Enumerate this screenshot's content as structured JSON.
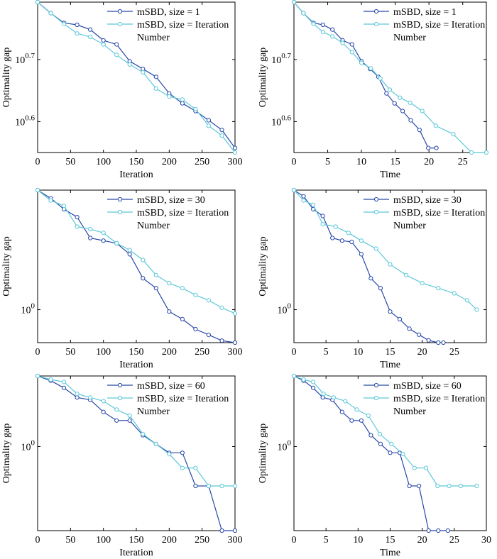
{
  "colors": {
    "series_a": "#2747a8",
    "series_b": "#5cc8d8",
    "axis": "#000000"
  },
  "chart_data": [
    {
      "type": "line",
      "panel": "row1-left",
      "xlabel": "Iteration",
      "ylabel": "Optimality gap",
      "yscale": "log",
      "xlim": [
        0,
        300
      ],
      "ylim": [
        3.55,
        6.2
      ],
      "xticks": [
        0,
        50,
        100,
        150,
        200,
        250,
        300
      ],
      "yticks": [
        {
          "value": 5.0119,
          "base": "10",
          "exp": "0.7"
        },
        {
          "value": 3.9811,
          "base": "10",
          "exp": "0.6"
        }
      ],
      "legend_position": "top-right",
      "series": [
        {
          "name": "mSBD, size = 1",
          "color": "#2747a8",
          "x": [
            0,
            20,
            40,
            60,
            80,
            100,
            120,
            140,
            160,
            180,
            200,
            220,
            240,
            260,
            280,
            300
          ],
          "y": [
            6.2,
            5.95,
            5.74,
            5.7,
            5.6,
            5.38,
            5.3,
            4.98,
            4.84,
            4.7,
            4.42,
            4.26,
            4.14,
            4.0,
            3.86,
            3.61
          ]
        },
        {
          "name": "mSBD, size = Iteration Number",
          "color": "#5cc8d8",
          "x": [
            0,
            20,
            40,
            60,
            80,
            100,
            120,
            140,
            160,
            180,
            200,
            220,
            240,
            260,
            280,
            300
          ],
          "y": [
            6.2,
            5.95,
            5.72,
            5.52,
            5.45,
            5.3,
            5.1,
            4.92,
            4.78,
            4.5,
            4.37,
            4.32,
            4.17,
            3.92,
            3.78,
            3.55
          ]
        }
      ]
    },
    {
      "type": "line",
      "panel": "row1-right",
      "xlabel": "Time",
      "ylabel": "Optimality gap",
      "yscale": "log",
      "xlim": [
        0,
        28.5
      ],
      "ylim": [
        3.55,
        6.2
      ],
      "xticks": [
        0,
        5,
        10,
        15,
        20,
        25
      ],
      "yticks": [
        {
          "value": 5.0119,
          "base": "10",
          "exp": "0.7"
        },
        {
          "value": 3.9811,
          "base": "10",
          "exp": "0.6"
        }
      ],
      "legend_position": "top-right",
      "series": [
        {
          "name": "mSBD, size = 1",
          "color": "#2747a8",
          "x": [
            0,
            1.4,
            2.9,
            4.3,
            5.7,
            7.2,
            8.6,
            10.0,
            11.3,
            12.5,
            13.7,
            14.9,
            16.1,
            17.3,
            18.6,
            19.9,
            21.1
          ],
          "y": [
            6.2,
            5.95,
            5.74,
            5.7,
            5.6,
            5.38,
            5.3,
            4.98,
            4.84,
            4.7,
            4.42,
            4.26,
            4.14,
            4.0,
            3.86,
            3.61,
            3.61
          ]
        },
        {
          "name": "mSBD, size = Iteration Number",
          "color": "#5cc8d8",
          "x": [
            0,
            1.4,
            2.9,
            4.3,
            5.7,
            7.2,
            8.6,
            10.0,
            11.4,
            12.8,
            14.2,
            15.7,
            17.2,
            19.0,
            21.0,
            23.6,
            26.3,
            28.5
          ],
          "y": [
            6.2,
            5.95,
            5.72,
            5.55,
            5.46,
            5.33,
            5.15,
            4.95,
            4.85,
            4.67,
            4.48,
            4.35,
            4.27,
            4.14,
            3.92,
            3.8,
            3.55,
            3.55
          ]
        }
      ]
    },
    {
      "type": "line",
      "panel": "row2-left",
      "xlabel": "Iteration",
      "ylabel": "Optimality gap",
      "yscale": "log",
      "xlim": [
        0,
        300
      ],
      "ylim": [
        0.84,
        1.88
      ],
      "xticks": [
        0,
        50,
        100,
        150,
        200,
        250,
        300
      ],
      "yticks": [
        {
          "value": 1.0,
          "base": "10",
          "exp": "0"
        }
      ],
      "legend_position": "top-right",
      "series": [
        {
          "name": "mSBD, size = 30",
          "color": "#2747a8",
          "x": [
            0,
            20,
            40,
            60,
            80,
            100,
            120,
            140,
            160,
            180,
            200,
            220,
            240,
            260,
            280,
            300
          ],
          "y": [
            1.88,
            1.8,
            1.7,
            1.63,
            1.46,
            1.44,
            1.42,
            1.34,
            1.18,
            1.12,
            0.99,
            0.951,
            0.902,
            0.875,
            0.849,
            0.84
          ]
        },
        {
          "name": "mSBD, size = Iteration Number",
          "color": "#5cc8d8",
          "x": [
            0,
            20,
            40,
            60,
            80,
            100,
            120,
            140,
            160,
            180,
            200,
            220,
            240,
            260,
            280,
            300
          ],
          "y": [
            1.88,
            1.78,
            1.73,
            1.55,
            1.53,
            1.5,
            1.42,
            1.37,
            1.3,
            1.2,
            1.15,
            1.12,
            1.08,
            1.05,
            1.01,
            0.98
          ]
        }
      ]
    },
    {
      "type": "line",
      "panel": "row2-right",
      "xlabel": "Time",
      "ylabel": "Optimality gap",
      "yscale": "log",
      "xlim": [
        0,
        30
      ],
      "ylim": [
        0.84,
        1.88
      ],
      "xticks": [
        0,
        5,
        10,
        15,
        20,
        25
      ],
      "yticks": [
        {
          "value": 1.0,
          "base": "10",
          "exp": "0"
        }
      ],
      "legend_position": "top-right",
      "series": [
        {
          "name": "mSBD, size = 30",
          "color": "#2747a8",
          "x": [
            0,
            1.5,
            3.0,
            4.5,
            6.0,
            7.5,
            9.0,
            10.5,
            12.0,
            13.5,
            15.0,
            16.5,
            18.0,
            19.5,
            21.0,
            22.5,
            23.3
          ],
          "y": [
            1.88,
            1.82,
            1.7,
            1.64,
            1.46,
            1.44,
            1.43,
            1.34,
            1.18,
            1.12,
            0.99,
            0.951,
            0.904,
            0.876,
            0.85,
            0.84,
            0.84
          ]
        },
        {
          "name": "mSBD, size = Iteration Number",
          "color": "#5cc8d8",
          "x": [
            0,
            1.5,
            3.0,
            4.5,
            6.5,
            8.5,
            10.5,
            12.8,
            15.0,
            17.5,
            20.0,
            22.5,
            25.0,
            27.0,
            28.5
          ],
          "y": [
            1.88,
            1.78,
            1.74,
            1.57,
            1.55,
            1.5,
            1.44,
            1.38,
            1.27,
            1.2,
            1.15,
            1.12,
            1.09,
            1.05,
            1.0
          ]
        }
      ]
    },
    {
      "type": "line",
      "panel": "row3-left",
      "xlabel": "Iteration",
      "ylabel": "Optimality gap",
      "yscale": "log",
      "xlim": [
        0,
        300
      ],
      "ylim": [
        0.935,
        1.058
      ],
      "xticks": [
        0,
        50,
        100,
        150,
        200,
        250,
        300
      ],
      "yticks": [
        {
          "value": 1.0,
          "base": "10",
          "exp": "0"
        }
      ],
      "legend_position": "top-right",
      "series": [
        {
          "name": "mSBD, size = 60",
          "color": "#2747a8",
          "x": [
            0,
            20,
            40,
            60,
            80,
            100,
            120,
            140,
            160,
            180,
            200,
            220,
            240,
            260,
            280,
            300
          ],
          "y": [
            1.058,
            1.054,
            1.048,
            1.04,
            1.038,
            1.028,
            1.021,
            1.021,
            1.009,
            1.002,
            0.995,
            0.995,
            0.969,
            0.969,
            0.935,
            0.935
          ]
        },
        {
          "name": "mSBD, size = Iteration Number",
          "color": "#5cc8d8",
          "x": [
            0,
            20,
            40,
            60,
            80,
            100,
            120,
            140,
            160,
            180,
            200,
            220,
            240,
            260,
            280,
            300
          ],
          "y": [
            1.058,
            1.055,
            1.053,
            1.043,
            1.04,
            1.037,
            1.03,
            1.025,
            1.01,
            1.002,
            0.994,
            0.983,
            0.983,
            0.969,
            0.969,
            0.969
          ]
        }
      ]
    },
    {
      "type": "line",
      "panel": "row3-right",
      "xlabel": "Time",
      "ylabel": "Optimality gap",
      "yscale": "log",
      "xlim": [
        0,
        30
      ],
      "ylim": [
        0.935,
        1.058
      ],
      "xticks": [
        0,
        5,
        10,
        15,
        20,
        25,
        30
      ],
      "yticks": [
        {
          "value": 1.0,
          "base": "10",
          "exp": "0"
        }
      ],
      "legend_position": "top-right",
      "series": [
        {
          "name": "mSBD, size = 60",
          "color": "#2747a8",
          "x": [
            0,
            1.5,
            3.0,
            4.5,
            6.0,
            7.5,
            9.0,
            10.5,
            12.0,
            13.5,
            15.0,
            16.5,
            18.0,
            19.5,
            21.0,
            22.5,
            24.0
          ],
          "y": [
            1.058,
            1.054,
            1.048,
            1.04,
            1.038,
            1.028,
            1.021,
            1.021,
            1.009,
            1.002,
            0.995,
            0.995,
            0.969,
            0.969,
            0.935,
            0.935,
            0.935
          ]
        },
        {
          "name": "mSBD, size = Iteration Number",
          "color": "#5cc8d8",
          "x": [
            0,
            1.5,
            3.0,
            4.6,
            6.2,
            8.0,
            9.8,
            11.6,
            13.4,
            15.2,
            17.0,
            18.8,
            20.6,
            22.4,
            24.2,
            26.0,
            28.5
          ],
          "y": [
            1.058,
            1.055,
            1.053,
            1.043,
            1.04,
            1.037,
            1.03,
            1.025,
            1.01,
            1.002,
            0.994,
            0.983,
            0.983,
            0.969,
            0.969,
            0.969,
            0.969
          ]
        }
      ]
    }
  ]
}
